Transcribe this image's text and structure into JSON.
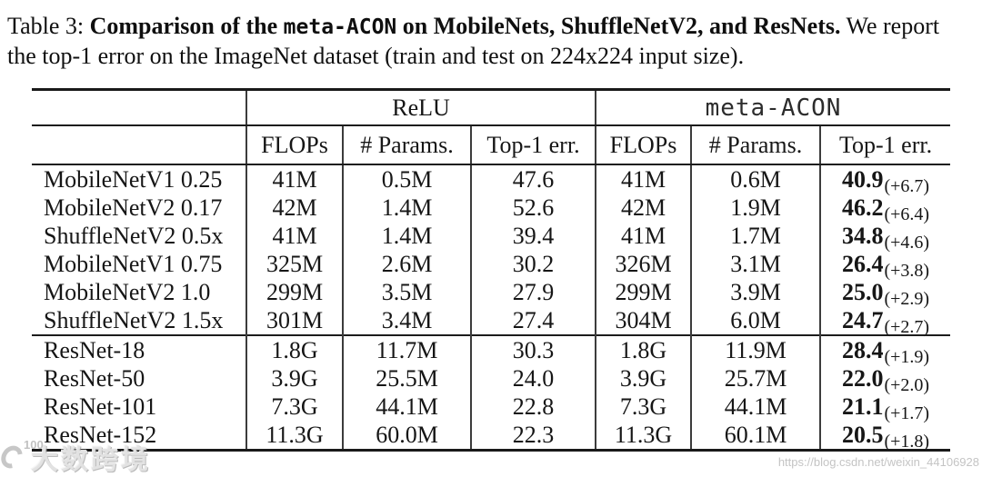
{
  "caption": {
    "label": "Table 3: ",
    "bold1": "Comparison of the ",
    "code": "meta-ACON",
    "bold2": " on MobileNets, ShuffleNetV2, and ResNets.",
    "normal1": " We report",
    "line2": "the top-1 error on the ImageNet dataset (train and test on 224x224 input size)."
  },
  "table": {
    "group1": "ReLU",
    "group2": "meta-ACON",
    "cols": [
      "FLOPs",
      "# Params.",
      "Top-1 err.",
      "FLOPs",
      "# Params.",
      "Top-1 err."
    ],
    "rows": [
      {
        "name": "MobileNetV1 0.25",
        "flops1": "41M",
        "params1": "0.5M",
        "err1": "47.6",
        "flops2": "41M",
        "params2": "0.6M",
        "err2": "40.9",
        "delta": "(+6.7)"
      },
      {
        "name": "MobileNetV2 0.17",
        "flops1": "42M",
        "params1": "1.4M",
        "err1": "52.6",
        "flops2": "42M",
        "params2": "1.9M",
        "err2": "46.2",
        "delta": "(+6.4)"
      },
      {
        "name": "ShuffleNetV2 0.5x",
        "flops1": "41M",
        "params1": "1.4M",
        "err1": "39.4",
        "flops2": "41M",
        "params2": "1.7M",
        "err2": "34.8",
        "delta": "(+4.6)"
      },
      {
        "name": "MobileNetV1 0.75",
        "flops1": "325M",
        "params1": "2.6M",
        "err1": "30.2",
        "flops2": "326M",
        "params2": "3.1M",
        "err2": "26.4",
        "delta": "(+3.8)"
      },
      {
        "name": "MobileNetV2 1.0",
        "flops1": "299M",
        "params1": "3.5M",
        "err1": "27.9",
        "flops2": "299M",
        "params2": "3.9M",
        "err2": "25.0",
        "delta": "(+2.9)"
      },
      {
        "name": "ShuffleNetV2 1.5x",
        "flops1": "301M",
        "params1": "3.4M",
        "err1": "27.4",
        "flops2": "304M",
        "params2": "6.0M",
        "err2": "24.7",
        "delta": "(+2.7)"
      },
      {
        "name": "ResNet-18",
        "flops1": "1.8G",
        "params1": "11.7M",
        "err1": "30.3",
        "flops2": "1.8G",
        "params2": "11.9M",
        "err2": "28.4",
        "delta": "(+1.9)"
      },
      {
        "name": "ResNet-50",
        "flops1": "3.9G",
        "params1": "25.5M",
        "err1": "24.0",
        "flops2": "3.9G",
        "params2": "25.7M",
        "err2": "22.0",
        "delta": "(+2.0)"
      },
      {
        "name": "ResNet-101",
        "flops1": "7.3G",
        "params1": "44.1M",
        "err1": "22.8",
        "flops2": "7.3G",
        "params2": "44.1M",
        "err2": "21.1",
        "delta": "(+1.7)"
      },
      {
        "name": "ResNet-152",
        "flops1": "11.3G",
        "params1": "60.0M",
        "err1": "22.3",
        "flops2": "11.3G",
        "params2": "60.1M",
        "err2": "20.5",
        "delta": "(+1.8)"
      }
    ]
  },
  "watermarks": {
    "logo_number": "100",
    "logo_text": "大数跨境",
    "url": "https://blog.csdn.net/weixin_44106928"
  },
  "colors": {
    "text": "#141414",
    "rule": "#1a1a1a",
    "watermark_gray": "#c1c1c1"
  }
}
